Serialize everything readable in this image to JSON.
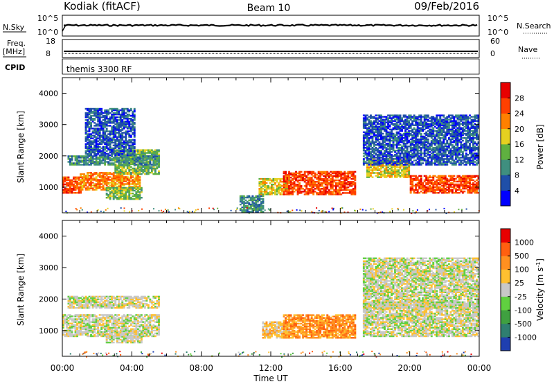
{
  "header": {
    "station": "Kodiak (fitACF)",
    "beam": "Beam 10",
    "date": "09/Feb/2016"
  },
  "top_panels": {
    "nsky_label": "N.Sky",
    "nsky_ticks": [
      "10^5",
      "10^0"
    ],
    "nsearch_label": "N.Search",
    "nsearch_ticks": [
      "10^5",
      "10^0"
    ],
    "freq_label_1": "Freq.",
    "freq_label_2": "[MHz]",
    "freq_ticks": [
      "18",
      "8"
    ],
    "nave_label": "Nave",
    "nave_ticks": [
      "60",
      "0"
    ],
    "cpid_label": "CPID",
    "cpid_value": "themis 3300 RF"
  },
  "chart_data": [
    {
      "type": "heatmap",
      "name": "power",
      "ylabel": "Slant Range [km]",
      "ylim": [
        180,
        4500
      ],
      "yticks": [
        1000,
        2000,
        3000,
        4000
      ],
      "xlim_hours": [
        0,
        24
      ],
      "colorbar": {
        "label": "Power [dB]",
        "ticks": [
          "4",
          "8",
          "12",
          "16",
          "20",
          "24",
          "28"
        ],
        "colors": [
          "#0000ff",
          "#1f4fa8",
          "#3f8f7f",
          "#5fb040",
          "#e6d020",
          "#ff8000",
          "#ff4000",
          "#e80000"
        ]
      },
      "regions": [
        {
          "t": [
            0.0,
            1.0
          ],
          "r": [
            800,
            1300
          ],
          "level": 6
        },
        {
          "t": [
            1.0,
            4.5
          ],
          "r": [
            900,
            1450
          ],
          "level": 5
        },
        {
          "t": [
            3.0,
            5.5
          ],
          "r": [
            1400,
            2200
          ],
          "level": 3
        },
        {
          "t": [
            0.3,
            5.5
          ],
          "r": [
            1700,
            2000
          ],
          "level": 2
        },
        {
          "t": [
            1.3,
            4.2
          ],
          "r": [
            2000,
            3500
          ],
          "level": 1
        },
        {
          "t": [
            2.5,
            4.5
          ],
          "r": [
            600,
            1000
          ],
          "level": 3
        },
        {
          "t": [
            10.2,
            11.5
          ],
          "r": [
            200,
            700
          ],
          "level": 2
        },
        {
          "t": [
            11.3,
            13.0
          ],
          "r": [
            750,
            1250
          ],
          "level": 4
        },
        {
          "t": [
            12.7,
            16.9
          ],
          "r": [
            750,
            1500
          ],
          "level": 6
        },
        {
          "t": [
            17.5,
            20.0
          ],
          "r": [
            1300,
            1900
          ],
          "level": 4
        },
        {
          "t": [
            20.0,
            24.0
          ],
          "r": [
            800,
            1350
          ],
          "level": 6
        },
        {
          "t": [
            17.3,
            24.0
          ],
          "r": [
            1700,
            3300
          ],
          "level": 1
        }
      ]
    },
    {
      "type": "heatmap",
      "name": "velocity",
      "ylabel": "Slant Range [km]",
      "ylim": [
        180,
        4500
      ],
      "yticks": [
        1000,
        2000,
        3000,
        4000
      ],
      "xlim_hours": [
        0,
        24
      ],
      "xticks": [
        "00:00",
        "04:00",
        "08:00",
        "12:00",
        "16:00",
        "20:00",
        "00:00"
      ],
      "xlabel": "Time UT",
      "colorbar": {
        "label": "Velocity [m s-1]",
        "ticks": [
          "1000",
          "500",
          "100",
          "25",
          "-25",
          "-100",
          "-500",
          "-1000"
        ],
        "colors": [
          "#1f3fb0",
          "#2f7f70",
          "#3fa040",
          "#60d040",
          "#c8c8c8",
          "#ffc030",
          "#ff9020",
          "#ff6010",
          "#e80000"
        ]
      },
      "regions": [
        {
          "t": [
            0.0,
            5.5
          ],
          "r": [
            800,
            1500
          ],
          "level": 4
        },
        {
          "t": [
            0.3,
            5.5
          ],
          "r": [
            1700,
            2100
          ],
          "level": 4
        },
        {
          "t": [
            2.5,
            4.5
          ],
          "r": [
            600,
            1000
          ],
          "level": 4
        },
        {
          "t": [
            11.5,
            13.0
          ],
          "r": [
            750,
            1250
          ],
          "level": 5
        },
        {
          "t": [
            12.7,
            16.9
          ],
          "r": [
            750,
            1500
          ],
          "level": 6
        },
        {
          "t": [
            17.3,
            24.0
          ],
          "r": [
            800,
            1900
          ],
          "level": 4
        },
        {
          "t": [
            17.3,
            24.0
          ],
          "r": [
            1700,
            3300
          ],
          "level": 4
        }
      ]
    }
  ]
}
